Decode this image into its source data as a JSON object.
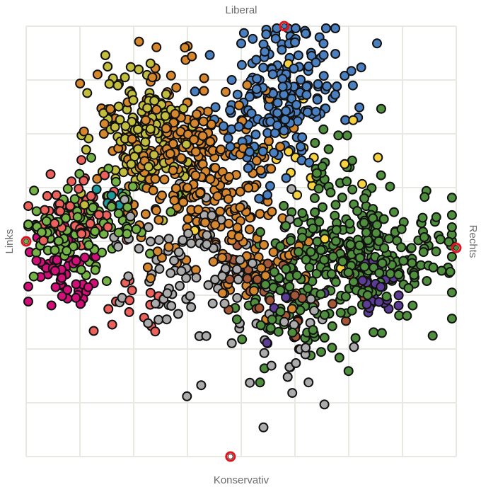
{
  "chart_data": {
    "type": "scatter",
    "labels": {
      "top": "Liberal",
      "bottom": "Konservativ",
      "left": "Links",
      "right": "Rechts"
    },
    "xlim": [
      -1,
      1
    ],
    "ylim": [
      -1,
      1
    ],
    "grid": true,
    "anchors": [
      {
        "pos": "top",
        "x": 0.2,
        "y": 1.0
      },
      {
        "pos": "bottom",
        "x": -0.05,
        "y": -1.0
      },
      {
        "pos": "left",
        "x": -1.0,
        "y": 0.0
      },
      {
        "pos": "right",
        "x": 1.0,
        "y": -0.03
      }
    ],
    "series": [
      {
        "color": "#4a7fc0",
        "clusters": [
          {
            "cx": 0.22,
            "cy": 0.74,
            "sx": 0.14,
            "sy": 0.14,
            "n": 150
          },
          {
            "cx": 0.08,
            "cy": 0.52,
            "sx": 0.12,
            "sy": 0.13,
            "n": 60
          }
        ]
      },
      {
        "color": "#d6872e",
        "clusters": [
          {
            "cx": -0.28,
            "cy": 0.43,
            "sx": 0.18,
            "sy": 0.18,
            "n": 230
          },
          {
            "cx": -0.08,
            "cy": 0.12,
            "sx": 0.16,
            "sy": 0.14,
            "n": 90
          },
          {
            "cx": 0.05,
            "cy": -0.12,
            "sx": 0.14,
            "sy": 0.1,
            "n": 50
          }
        ]
      },
      {
        "color": "#c2bd3c",
        "clusters": [
          {
            "cx": -0.45,
            "cy": 0.5,
            "sx": 0.13,
            "sy": 0.14,
            "n": 140
          }
        ]
      },
      {
        "color": "#4e8e3d",
        "clusters": [
          {
            "cx": 0.55,
            "cy": -0.06,
            "sx": 0.2,
            "sy": 0.13,
            "n": 280
          },
          {
            "cx": 0.3,
            "cy": -0.3,
            "sx": 0.16,
            "sy": 0.14,
            "n": 100
          },
          {
            "cx": 0.45,
            "cy": 0.3,
            "sx": 0.12,
            "sy": 0.12,
            "n": 30
          }
        ]
      },
      {
        "color": "#74b245",
        "clusters": [
          {
            "cx": -0.8,
            "cy": 0.03,
            "sx": 0.1,
            "sy": 0.1,
            "n": 90
          },
          {
            "cx": -0.55,
            "cy": 0.15,
            "sx": 0.12,
            "sy": 0.1,
            "n": 40
          }
        ]
      },
      {
        "color": "#ec615b",
        "clusters": [
          {
            "cx": -0.77,
            "cy": 0.13,
            "sx": 0.09,
            "sy": 0.1,
            "n": 70
          },
          {
            "cx": -0.55,
            "cy": -0.3,
            "sx": 0.1,
            "sy": 0.08,
            "n": 15
          }
        ]
      },
      {
        "color": "#d10f76",
        "clusters": [
          {
            "cx": -0.82,
            "cy": -0.15,
            "sx": 0.08,
            "sy": 0.1,
            "n": 60
          }
        ]
      },
      {
        "color": "#ababab",
        "clusters": [
          {
            "cx": -0.2,
            "cy": -0.12,
            "sx": 0.22,
            "sy": 0.16,
            "n": 90
          },
          {
            "cx": 0.15,
            "cy": -0.45,
            "sx": 0.2,
            "sy": 0.2,
            "n": 40
          }
        ]
      },
      {
        "color": "#5c3c97",
        "clusters": [
          {
            "cx": 0.65,
            "cy": -0.22,
            "sx": 0.06,
            "sy": 0.05,
            "n": 30
          },
          {
            "cx": 0.2,
            "cy": -0.3,
            "sx": 0.1,
            "sy": 0.08,
            "n": 6
          }
        ]
      },
      {
        "color": "#a55837",
        "clusters": [
          {
            "cx": 0.15,
            "cy": -0.2,
            "sx": 0.18,
            "sy": 0.12,
            "n": 45
          }
        ]
      },
      {
        "color": "#f6d23e",
        "clusters": [
          {
            "cx": 0.3,
            "cy": 0.25,
            "sx": 0.25,
            "sy": 0.3,
            "n": 25
          }
        ]
      },
      {
        "color": "#1f9b9b",
        "clusters": [
          {
            "cx": -0.65,
            "cy": 0.2,
            "sx": 0.05,
            "sy": 0.05,
            "n": 5
          }
        ]
      }
    ]
  }
}
